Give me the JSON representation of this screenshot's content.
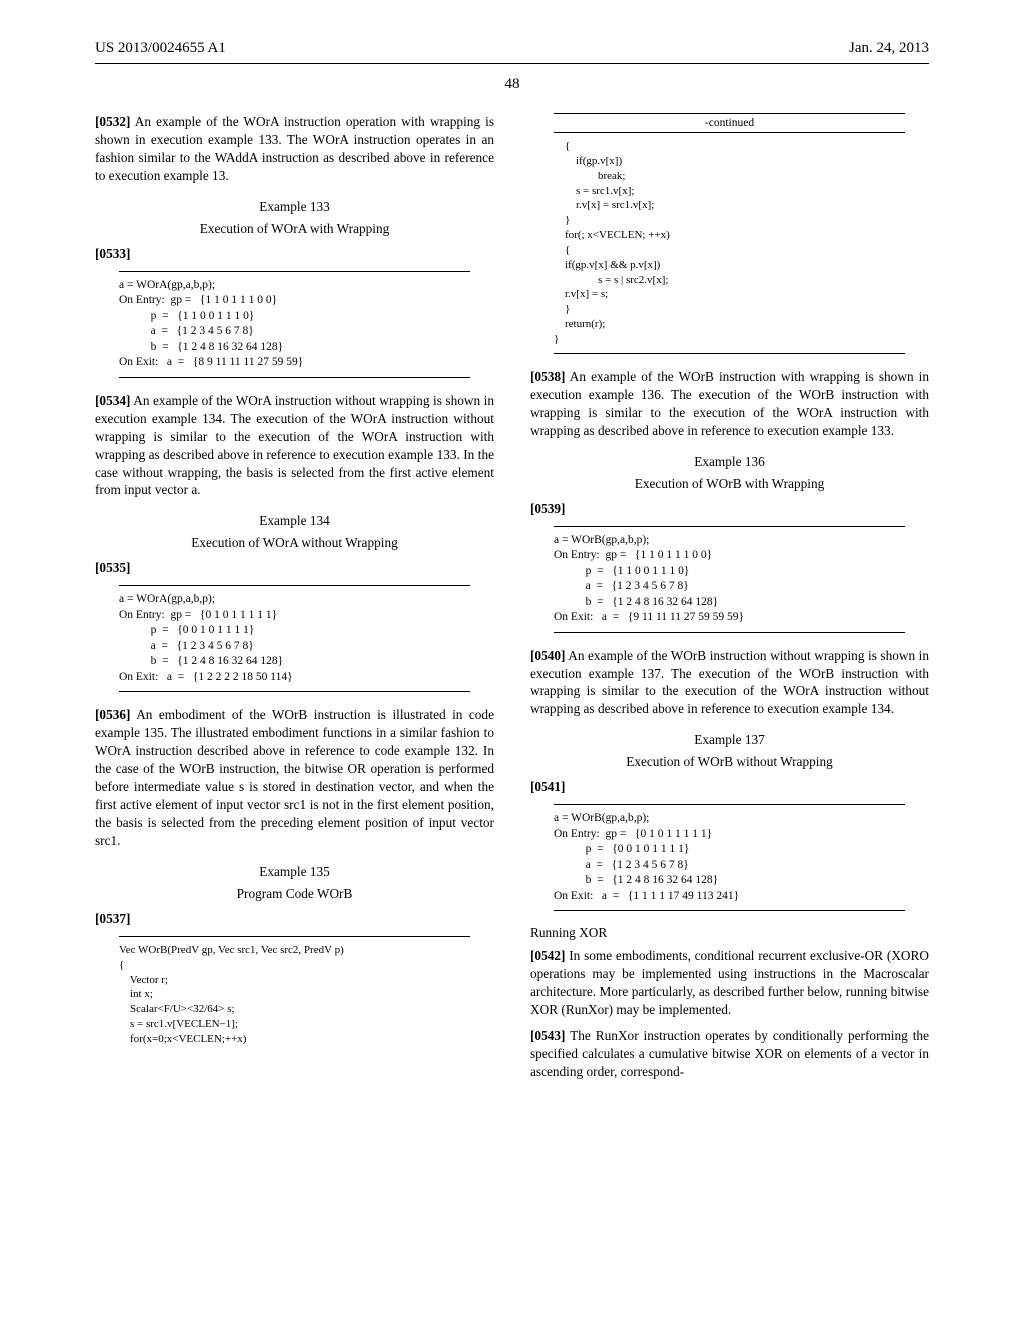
{
  "header": {
    "pubnum": "US 2013/0024655 A1",
    "date": "Jan. 24, 2013",
    "pagenum": "48"
  },
  "left": {
    "p0532": {
      "num": "[0532]",
      "text": "An example of the WOrA instruction operation with wrapping is shown in execution example 133. The WOrA instruction operates in an fashion similar to the WAddA instruction as described above in reference to execution example 13."
    },
    "ex133": {
      "label": "Example 133",
      "title": "Execution of WOrA with Wrapping",
      "num": "[0533]",
      "call": "a = WOrA(gp,a,b,p);",
      "entry_label": "On Entry:",
      "gp": "gp =   {1 1 0 1 1 1 0 0}",
      "p": "p  =   {1 1 0 0 1 1 1 0}",
      "a": "a  =   {1 2 3 4 5 6 7 8}",
      "b": "b  =   {1 2 4 8 16 32 64 128}",
      "exit_label": "On Exit:",
      "exit": "a  =   {8 9 11 11 11 27 59 59}"
    },
    "p0534": {
      "num": "[0534]",
      "text": "An example of the WOrA instruction without wrapping is shown in execution example 134. The execution of the WOrA instruction without wrapping is similar to the execution of the WOrA instruction with wrapping as described above in reference to execution example 133. In the case without wrapping, the basis is selected from the first active element from input vector a."
    },
    "ex134": {
      "label": "Example 134",
      "title": "Execution of WOrA without Wrapping",
      "num": "[0535]",
      "call": "a = WOrA(gp,a,b,p);",
      "entry_label": "On Entry:",
      "gp": "gp =   {0 1 0 1 1 1 1 1}",
      "p": "p  =   {0 0 1 0 1 1 1 1}",
      "a": "a  =   {1 2 3 4 5 6 7 8}",
      "b": "b  =   {1 2 4 8 16 32 64 128}",
      "exit_label": "On Exit:",
      "exit": "a  =   {1 2 2 2 2 18 50 114}"
    },
    "p0536": {
      "num": "[0536]",
      "text": "An embodiment of the WOrB instruction is illustrated in code example 135. The illustrated embodiment functions in a similar fashion to WOrA instruction described above in reference to code example 132. In the case of the WOrB instruction, the bitwise OR operation is performed before intermediate value s is stored in destination vector, and when the first active element of input vector src1 is not in the first element position, the basis is selected from the preceding element position of input vector src1."
    },
    "ex135": {
      "label": "Example 135",
      "title": "Program Code WOrB",
      "num": "[0537]",
      "code": "Vec WOrB(PredV gp, Vec src1, Vec src2, PredV p)\n{\n    Vector r;\n    int x;\n    Scalar<F/U><32/64> s;\n    s = src1.v[VECLEN−1];\n    for(x=0;x<VECLEN;++x)"
    }
  },
  "right": {
    "continued": {
      "label": "-continued",
      "code": "    {\n        if(gp.v[x])\n                break;\n        s = src1.v[x];\n        r.v[x] = src1.v[x];\n    }\n    for(; x<VECLEN; ++x)\n    {\n    if(gp.v[x] && p.v[x])\n                s = s | src2.v[x];\n    r.v[x] = s;\n    }\n    return(r);\n}"
    },
    "p0538": {
      "num": "[0538]",
      "text": "An example of the WOrB instruction with wrapping is shown in execution example 136. The execution of the WOrB instruction with wrapping is similar to the execution of the WOrA instruction with wrapping as described above in reference to execution example 133."
    },
    "ex136": {
      "label": "Example 136",
      "title": "Execution of WOrB with Wrapping",
      "num": "[0539]",
      "call": "a = WOrB(gp,a,b,p);",
      "entry_label": "On Entry:",
      "gp": "gp =   {1 1 0 1 1 1 0 0}",
      "p": "p  =   {1 1 0 0 1 1 1 0}",
      "a": "a  =   {1 2 3 4 5 6 7 8}",
      "b": "b  =   {1 2 4 8 16 32 64 128}",
      "exit_label": "On Exit:",
      "exit": "a  =   {9 11 11 11 27 59 59 59}"
    },
    "p0540": {
      "num": "[0540]",
      "text": "An example of the WOrB instruction without wrapping is shown in execution example 137. The execution of the WOrB instruction with wrapping is similar to the execution of the WOrA instruction without wrapping as described above in reference to execution example 134."
    },
    "ex137": {
      "label": "Example 137",
      "title": "Execution of WOrB without Wrapping",
      "num": "[0541]",
      "call": "a = WOrB(gp,a,b,p);",
      "entry_label": "On Entry:",
      "gp": "gp =   {0 1 0 1 1 1 1 1}",
      "p": "p  =   {0 0 1 0 1 1 1 1}",
      "a": "a  =   {1 2 3 4 5 6 7 8}",
      "b": "b  =   {1 2 4 8 16 32 64 128}",
      "exit_label": "On Exit:",
      "exit": "a  =   {1 1 1 1 17 49 113 241}"
    },
    "running_xor": {
      "heading": "Running XOR",
      "p0542": {
        "num": "[0542]",
        "text": "In some embodiments, conditional recurrent exclusive-OR (XORO operations may be implemented using instructions in the Macroscalar architecture. More particularly, as described further below, running bitwise XOR (RunXor) may be implemented."
      },
      "p0543": {
        "num": "[0543]",
        "text": "The RunXor instruction operates by conditionally performing the specified calculates a cumulative bitwise XOR on elements of a vector in ascending order, correspond-"
      }
    }
  }
}
